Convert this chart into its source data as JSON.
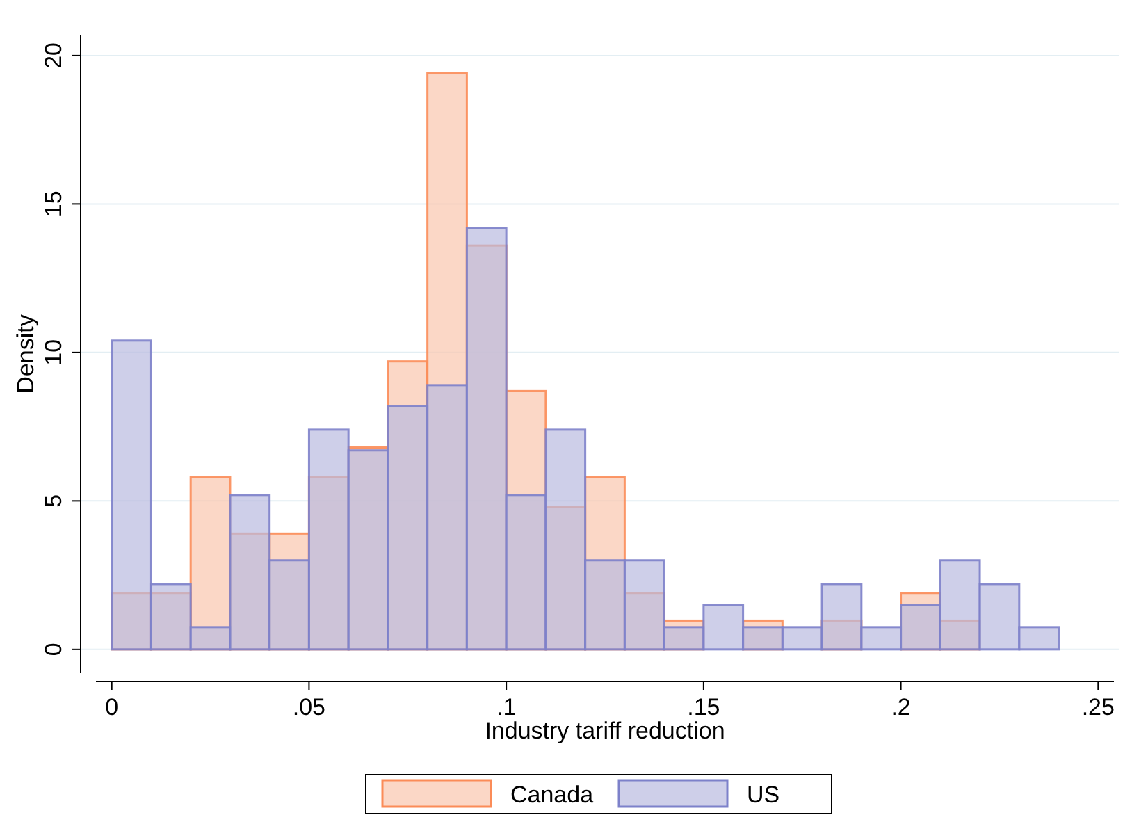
{
  "chart_data": {
    "type": "histogram",
    "xlabel": "Industry tariff reduction",
    "ylabel": "Density",
    "bins": [
      0,
      0.01,
      0.02,
      0.03,
      0.04,
      0.05,
      0.06,
      0.07,
      0.08,
      0.09,
      0.1,
      0.11,
      0.12,
      0.13,
      0.14,
      0.15,
      0.16,
      0.17,
      0.18,
      0.19,
      0.2,
      0.21,
      0.22,
      0.23,
      0.24
    ],
    "series": [
      {
        "name": "Canada",
        "color": "#f9c6ae",
        "values": [
          1.9,
          1.9,
          5.8,
          3.9,
          3.9,
          5.8,
          6.8,
          9.7,
          19.4,
          13.6,
          8.7,
          4.8,
          5.8,
          1.9,
          0.97,
          0,
          0.97,
          0,
          0.97,
          0,
          1.9,
          0.97,
          0,
          0
        ]
      },
      {
        "name": "US",
        "color": "#b9bbe0",
        "values": [
          10.4,
          2.2,
          0.75,
          5.2,
          3.0,
          7.4,
          6.7,
          8.2,
          8.9,
          14.2,
          5.2,
          7.4,
          3.0,
          3.0,
          0.75,
          1.5,
          0.75,
          0.75,
          2.2,
          0.75,
          1.5,
          3.0,
          2.2,
          0.75
        ]
      }
    ],
    "xlim": [
      -0.004,
      0.254
    ],
    "ylim": [
      -0.8,
      20.7
    ],
    "xticks": [
      0,
      {
        "value": 0.05,
        "label": ".05"
      },
      {
        "value": 0.1,
        "label": ".1"
      },
      {
        "value": 0.15,
        "label": ".15"
      },
      {
        "value": 0.2,
        "label": ".2"
      },
      {
        "value": 0.25,
        "label": ".25"
      }
    ],
    "yticks": [
      0,
      5,
      10,
      15,
      20
    ],
    "grid": "y",
    "legend": "bottom"
  }
}
